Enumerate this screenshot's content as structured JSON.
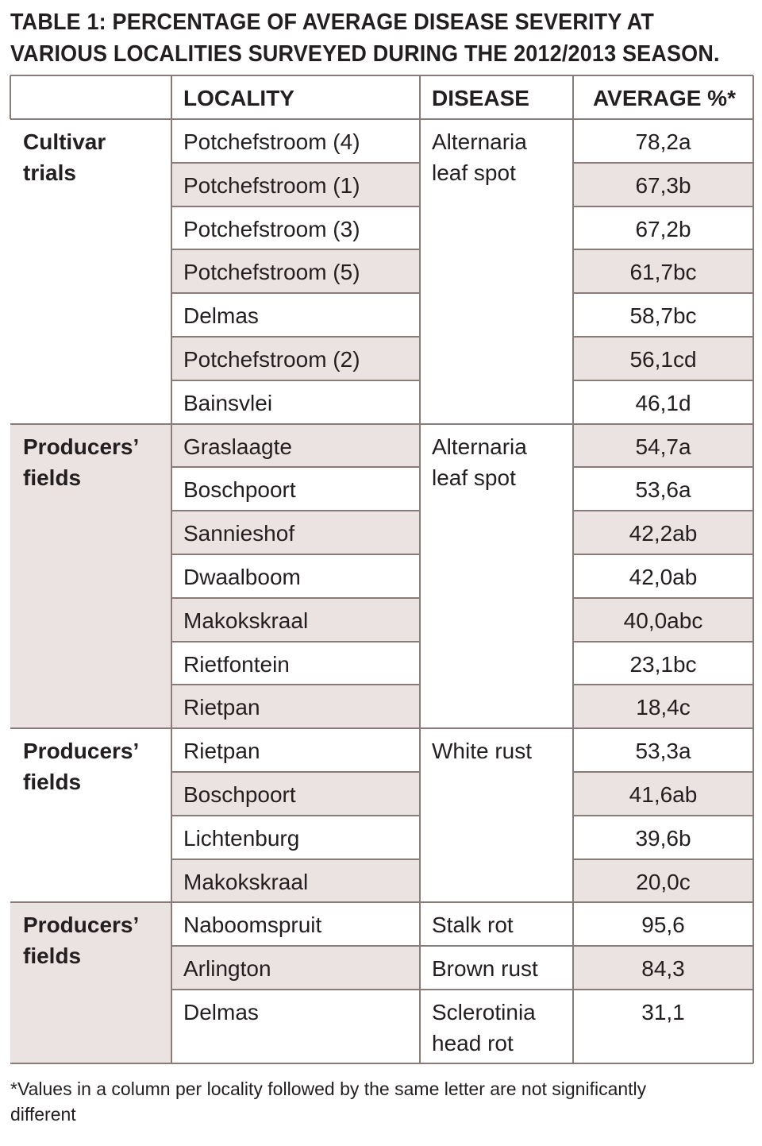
{
  "title": {
    "line1": "TABLE 1: PERCENTAGE OF AVERAGE DISEASE SEVERITY AT",
    "line2": "VARIOUS LOCALITIES SURVEYED DURING THE 2012/2013 SEASON."
  },
  "headers": {
    "group": "",
    "locality": "LOCALITY",
    "disease": "DISEASE",
    "average": "AVERAGE %*"
  },
  "groups": [
    {
      "label1": "Cultivar",
      "label2": "trials",
      "disease1": "Alternaria",
      "disease2": "leaf spot"
    },
    {
      "label1": "Producers’",
      "label2": "fields",
      "disease1": "Alternaria",
      "disease2": "leaf spot"
    },
    {
      "label1": "Producers’",
      "label2": "fields",
      "disease1": "White rust",
      "disease2": ""
    },
    {
      "label1": "Producers’",
      "label2": "fields",
      "disease1": "",
      "disease2": ""
    }
  ],
  "rows": [
    {
      "locality": "Potchefstroom (4)",
      "average": "78,2a"
    },
    {
      "locality": "Potchefstroom (1)",
      "average": "67,3b"
    },
    {
      "locality": "Potchefstroom (3)",
      "average": "67,2b"
    },
    {
      "locality": "Potchefstroom (5)",
      "average": "61,7bc"
    },
    {
      "locality": "Delmas",
      "average": "58,7bc"
    },
    {
      "locality": "Potchefstroom (2)",
      "average": "56,1cd"
    },
    {
      "locality": "Bainsvlei",
      "average": "46,1d"
    },
    {
      "locality": "Graslaagte",
      "average": "54,7a"
    },
    {
      "locality": "Boschpoort",
      "average": "53,6a"
    },
    {
      "locality": "Sannieshof",
      "average": "42,2ab"
    },
    {
      "locality": "Dwaalboom",
      "average": "42,0ab"
    },
    {
      "locality": "Makokskraal",
      "average": "40,0abc"
    },
    {
      "locality": "Rietfontein",
      "average": "23,1bc"
    },
    {
      "locality": "Rietpan",
      "average": "18,4c"
    },
    {
      "locality": "Rietpan",
      "average": "53,3a"
    },
    {
      "locality": "Boschpoort",
      "average": "41,6ab"
    },
    {
      "locality": "Lichtenburg",
      "average": "39,6b"
    },
    {
      "locality": "Makokskraal",
      "average": "20,0c"
    },
    {
      "locality": "Naboomspruit",
      "disease1": "Stalk rot",
      "disease2": "",
      "average": "95,6"
    },
    {
      "locality": "Arlington",
      "disease1": "Brown rust",
      "disease2": "",
      "average": "84,3"
    },
    {
      "locality": "Delmas",
      "disease1": "Sclerotinia",
      "disease2": "head rot",
      "average": "31,1"
    }
  ],
  "footnote": {
    "line1": "*Values in a column per locality followed by the same letter are not significantly",
    "line2": "different"
  },
  "colors": {
    "rule": "#8a7a78",
    "shade": "#ebe3e2",
    "text": "#231f20"
  }
}
